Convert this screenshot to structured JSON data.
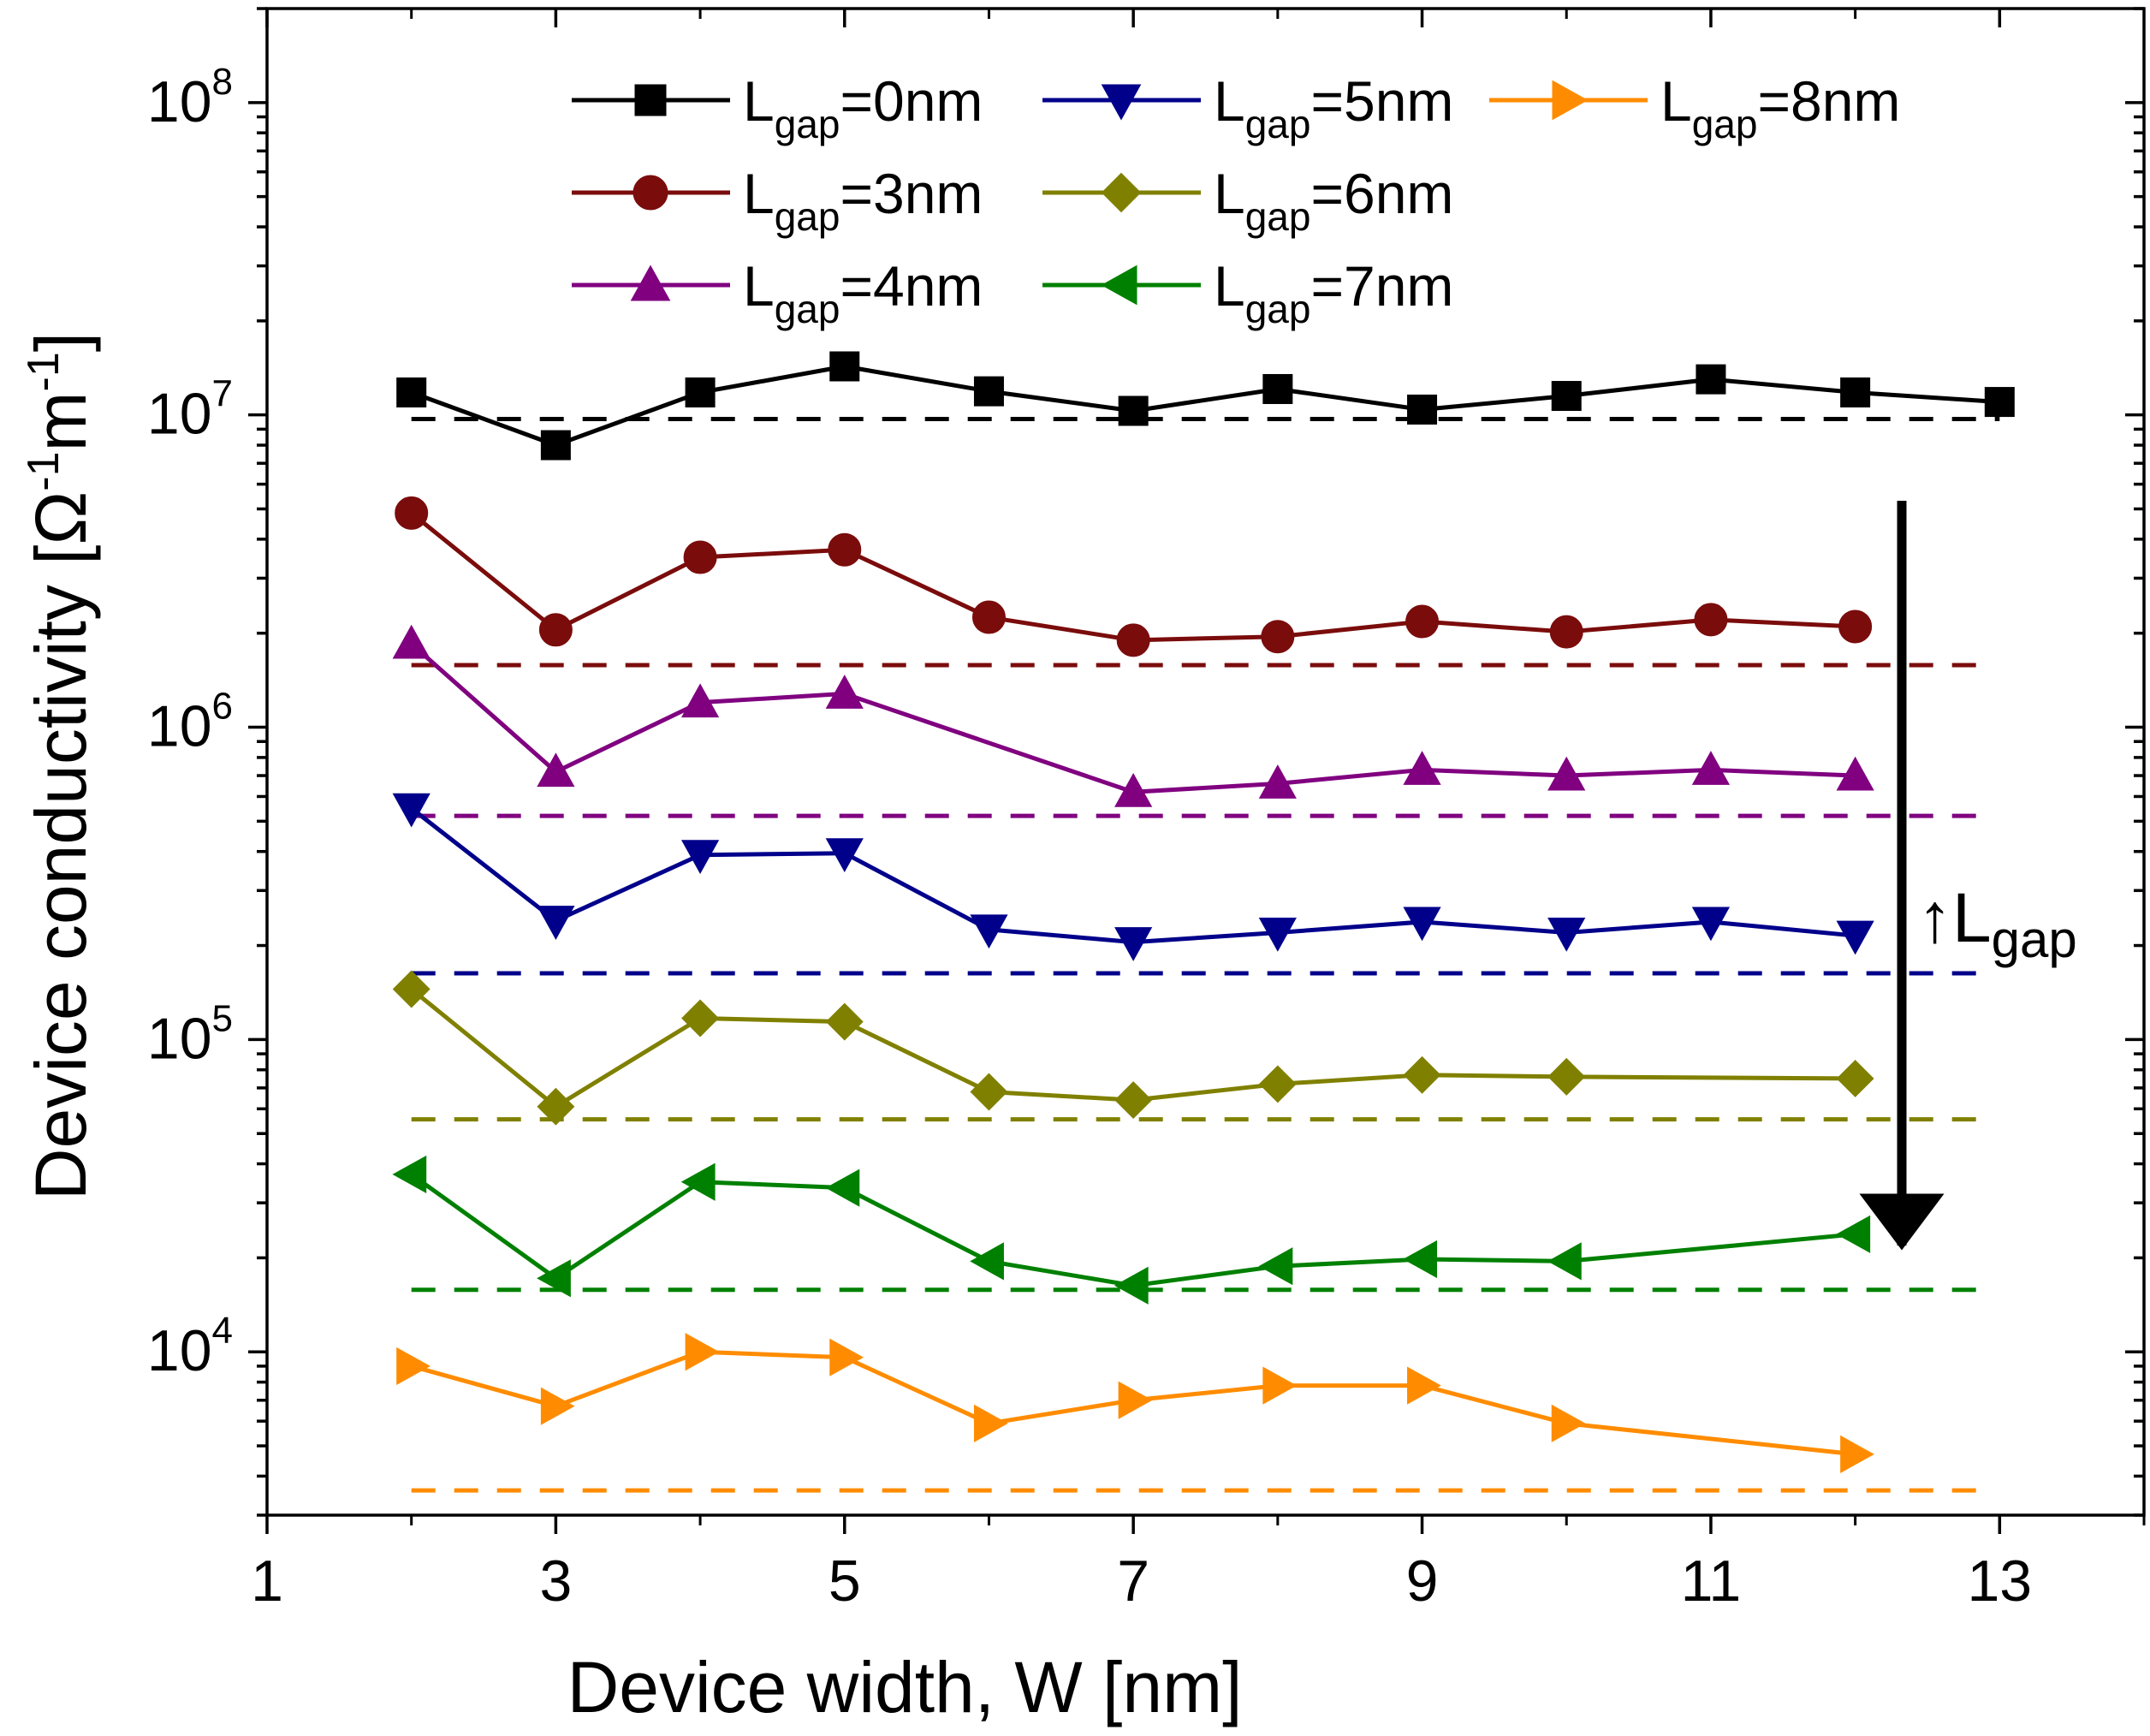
{
  "chart_data": {
    "type": "line",
    "xlabel": "Device width, W [nm]",
    "ylabel": {
      "main": "Device conductivity [",
      "omega": "Ω",
      "exp1": "-1",
      "m": "m",
      "exp2": "-1",
      "close": "]"
    },
    "xlim": [
      1,
      14
    ],
    "ylim": [
      3000,
      200000000
    ],
    "yscale": "log",
    "x_ticks": [
      {
        "value": 1,
        "label": "1"
      },
      {
        "value": 3,
        "label": "3"
      },
      {
        "value": 5,
        "label": "5"
      },
      {
        "value": 7,
        "label": "7"
      },
      {
        "value": 9,
        "label": "9"
      },
      {
        "value": 11,
        "label": "11"
      },
      {
        "value": 13,
        "label": "13"
      }
    ],
    "x_minor_ticks": [
      2,
      4,
      6,
      8,
      10,
      12,
      14
    ],
    "y_ticks": [
      {
        "value": 10000,
        "base": "10",
        "exp": "4"
      },
      {
        "value": 100000,
        "base": "10",
        "exp": "5"
      },
      {
        "value": 1000000,
        "base": "10",
        "exp": "6"
      },
      {
        "value": 10000000,
        "base": "10",
        "exp": "7"
      },
      {
        "value": 100000000,
        "base": "10",
        "exp": "8"
      }
    ],
    "legend_layout": "top, three columns",
    "series": [
      {
        "name": "Lgap=0nm",
        "label_prefix": "L",
        "label_sub": "gap",
        "label_suffix": "=0nm",
        "color": "#000000",
        "marker": "square",
        "x": [
          2,
          3,
          4,
          5,
          6,
          7,
          8,
          9,
          10,
          11,
          12,
          13
        ],
        "y": [
          11800000,
          8000000,
          11800000,
          14300000,
          11900000,
          10300000,
          12100000,
          10400000,
          11500000,
          13000000,
          11800000,
          11000000
        ],
        "ref_value": 9700000,
        "ref_xrange": [
          2,
          13
        ]
      },
      {
        "name": "Lgap=3nm",
        "label_prefix": "L",
        "label_sub": "gap",
        "label_suffix": "=3nm",
        "color": "#7b0c0c",
        "marker": "circle",
        "x": [
          2,
          3,
          4,
          5,
          6,
          7,
          8,
          9,
          10,
          11,
          12
        ],
        "y": [
          4850000,
          2050000,
          3500000,
          3700000,
          2250000,
          1900000,
          1950000,
          2180000,
          2020000,
          2210000,
          2100000
        ],
        "ref_value": 1580000,
        "ref_xrange": [
          2,
          12.9
        ]
      },
      {
        "name": "Lgap=4nm",
        "label_prefix": "L",
        "label_sub": "gap",
        "label_suffix": "=4nm",
        "color": "#800080",
        "marker": "triangle-up",
        "x": [
          2,
          3,
          4,
          5,
          7,
          8,
          9,
          10,
          11,
          12
        ],
        "y": [
          1850000,
          720000,
          1200000,
          1280000,
          620000,
          660000,
          730000,
          700000,
          730000,
          700000
        ],
        "ref_value": 520000,
        "ref_xrange": [
          2,
          12.9
        ]
      },
      {
        "name": "Lgap=5nm",
        "label_prefix": "L",
        "label_sub": "gap",
        "label_suffix": "=5nm",
        "color": "#00008b",
        "marker": "triangle-down",
        "x": [
          2,
          3,
          4,
          5,
          6,
          7,
          8,
          9,
          10,
          11,
          12
        ],
        "y": [
          550000,
          240000,
          390000,
          395000,
          225000,
          205000,
          220000,
          238000,
          220000,
          238000,
          215000
        ],
        "ref_value": 163000,
        "ref_xrange": [
          2,
          12.9
        ]
      },
      {
        "name": "Lgap=6nm",
        "label_prefix": "L",
        "label_sub": "gap",
        "label_suffix": "=6nm",
        "color": "#808000",
        "marker": "diamond",
        "x": [
          2,
          3,
          4,
          5,
          6,
          7,
          8,
          9,
          10,
          12
        ],
        "y": [
          145000,
          61000,
          117000,
          114000,
          68000,
          64000,
          72000,
          77000,
          76000,
          75000
        ],
        "ref_value": 55500,
        "ref_xrange": [
          2,
          12.9
        ]
      },
      {
        "name": "Lgap=7nm",
        "label_prefix": "L",
        "label_sub": "gap",
        "label_suffix": "=7nm",
        "color": "#008000",
        "marker": "triangle-left",
        "x": [
          2,
          3,
          4,
          5,
          6,
          7,
          8,
          9,
          10,
          12
        ],
        "y": [
          37000,
          17200,
          35000,
          33500,
          19500,
          16300,
          18800,
          19800,
          19500,
          23800
        ],
        "ref_value": 15800,
        "ref_xrange": [
          2,
          12.9
        ]
      },
      {
        "name": "Lgap=8nm",
        "label_prefix": "L",
        "label_sub": "gap",
        "label_suffix": "=8nm",
        "color": "#ff8c00",
        "marker": "triangle-right",
        "x": [
          2,
          3,
          4,
          5,
          6,
          7,
          8,
          9,
          10,
          12
        ],
        "y": [
          9000,
          6700,
          10000,
          9600,
          5900,
          7000,
          7800,
          7800,
          5900,
          4700
        ],
        "ref_value": 3600,
        "ref_xrange": [
          2,
          12.9
        ]
      }
    ],
    "annotation": {
      "arrow": "↑",
      "text": "L",
      "sub": "gap",
      "direction": "down"
    }
  }
}
